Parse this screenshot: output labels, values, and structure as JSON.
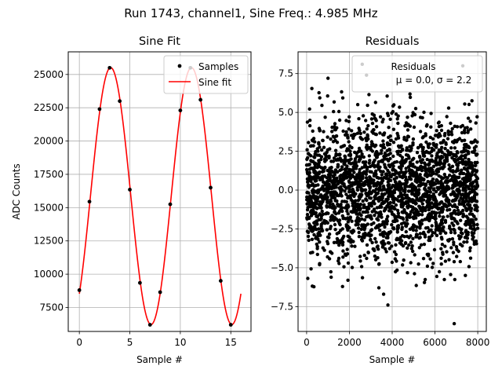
{
  "suptitle": "Run 1743, channel1, Sine Freq.: 4.985 MHz",
  "colors": {
    "samples": "#000000",
    "fit": "#ff0000",
    "grid": "#b0b0b0",
    "residuals": "#000000"
  },
  "chart_data": [
    {
      "type": "line",
      "title": "Sine Fit",
      "xlabel": "Sample #",
      "ylabel": "ADC Counts",
      "xlim": [
        -1.1,
        17.0
      ],
      "ylim": [
        5700,
        26700
      ],
      "xticks": [
        0,
        5,
        10,
        15
      ],
      "yticks": [
        7500,
        10000,
        12500,
        15000,
        17500,
        20000,
        22500,
        25000
      ],
      "grid": true,
      "legend": {
        "placement": "top-right",
        "entries": [
          "Samples",
          "Sine fit"
        ]
      },
      "series": [
        {
          "name": "Samples",
          "style": "markers",
          "x": [
            0,
            1,
            2,
            3,
            4,
            5,
            6,
            7,
            8,
            9,
            10,
            11,
            12,
            13,
            14,
            15
          ],
          "y": [
            8800,
            15450,
            22400,
            25500,
            23000,
            16350,
            9350,
            6200,
            8650,
            15250,
            22300,
            25500,
            23100,
            16500,
            9500,
            6200
          ]
        },
        {
          "name": "Sine fit",
          "style": "line",
          "model": {
            "offset": 15870,
            "amplitude": 9650,
            "period_samples": 8.0,
            "peak_x": 3.1,
            "x_range": [
              0,
              16
            ]
          }
        }
      ]
    },
    {
      "type": "scatter",
      "title": "Residuals",
      "xlabel": "Sample #",
      "ylabel": "",
      "xlim": [
        -400,
        8400
      ],
      "ylim": [
        -9.1,
        8.9
      ],
      "xticks": [
        0,
        2000,
        4000,
        6000,
        8000
      ],
      "yticks": [
        -7.5,
        -5.0,
        -2.5,
        0.0,
        2.5,
        5.0,
        7.5
      ],
      "grid": true,
      "legend": {
        "placement": "top-right",
        "entries": [
          "Residuals"
        ],
        "stats_line": "μ = 0.0, σ = 2.2"
      },
      "series": [
        {
          "name": "Residuals",
          "mean": 0.0,
          "std": 2.2,
          "n_points": 8000,
          "x_range": [
            0,
            8000
          ],
          "outliers": [
            [
              2600,
              8.1
            ],
            [
              7300,
              8.0
            ],
            [
              2800,
              7.4
            ],
            [
              1000,
              7.2
            ],
            [
              3800,
              -7.4
            ],
            [
              6900,
              -8.6
            ],
            [
              3600,
              -6.7
            ]
          ]
        }
      ]
    }
  ]
}
